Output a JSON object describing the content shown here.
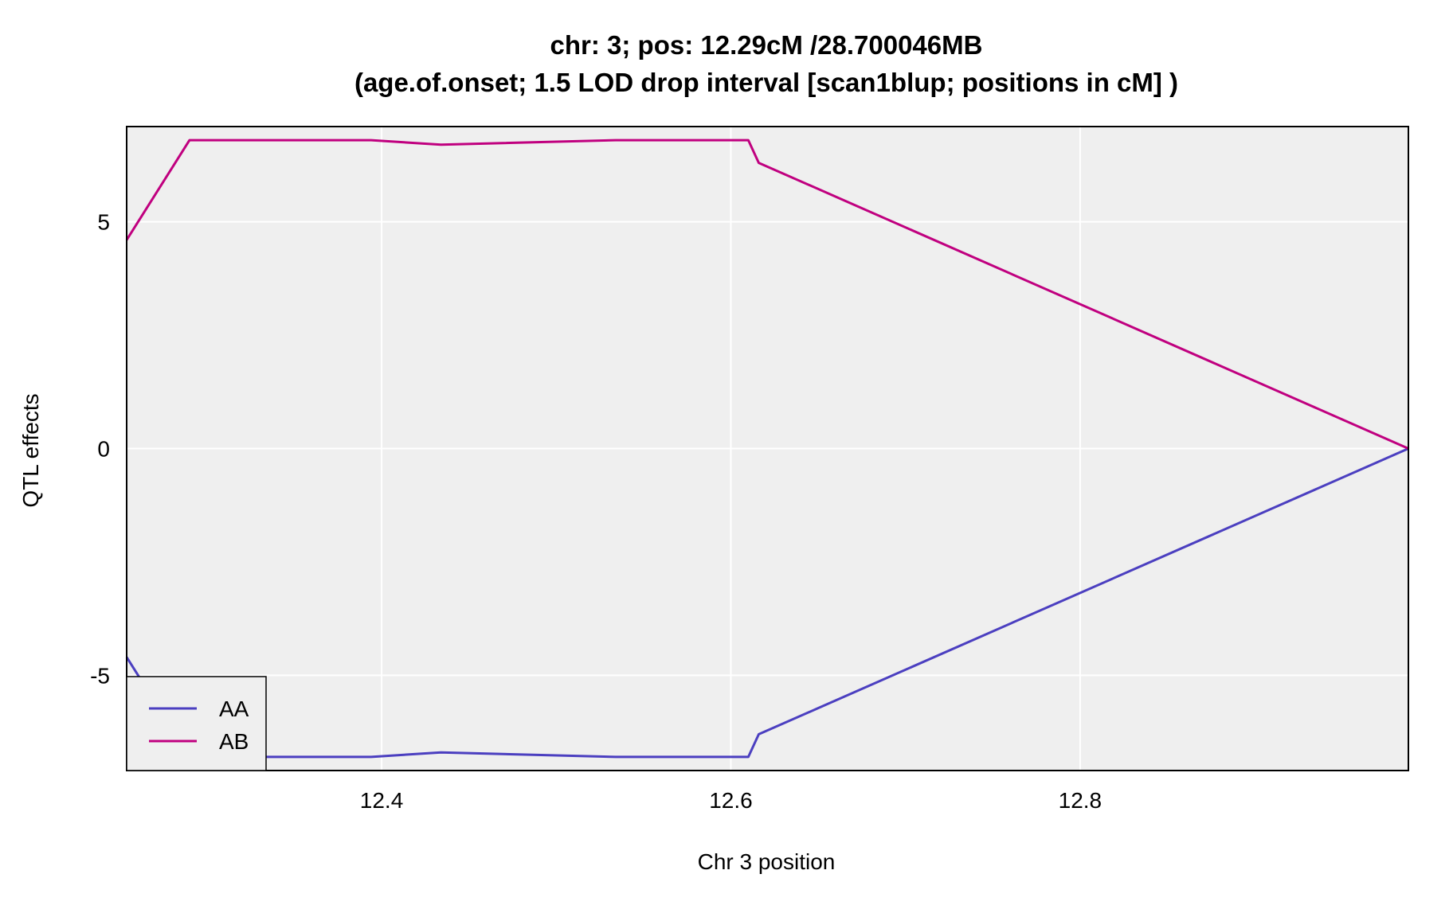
{
  "chart_data": {
    "type": "line",
    "title": "chr: 3; pos: 12.29cM /28.700046MB",
    "subtitle": "(age.of.onset; 1.5 LOD drop interval [scan1blup; positions in cM] )",
    "xlabel": "Chr 3 position",
    "ylabel": "QTL effects",
    "xlim": [
      12.254,
      12.988
    ],
    "ylim": [
      -7.1,
      7.1
    ],
    "xticks": [
      12.4,
      12.6,
      12.8
    ],
    "xtick_labels": [
      "12.4",
      "12.6",
      "12.8"
    ],
    "yticks": [
      -5,
      0,
      5
    ],
    "ytick_labels": [
      "-5",
      "0",
      "5"
    ],
    "grid": true,
    "background": "#efefef",
    "legend_position": "bottom-left",
    "series": [
      {
        "name": "AA",
        "color": "#4b3fc0",
        "x": [
          12.254,
          12.29,
          12.394,
          12.434,
          12.534,
          12.61,
          12.616,
          12.988
        ],
        "y": [
          -4.6,
          -6.8,
          -6.8,
          -6.7,
          -6.8,
          -6.8,
          -6.3,
          0.0
        ]
      },
      {
        "name": "AB",
        "color": "#c0007f",
        "x": [
          12.254,
          12.29,
          12.394,
          12.434,
          12.534,
          12.61,
          12.616,
          12.988
        ],
        "y": [
          4.6,
          6.8,
          6.8,
          6.7,
          6.8,
          6.8,
          6.3,
          0.0
        ]
      }
    ]
  }
}
